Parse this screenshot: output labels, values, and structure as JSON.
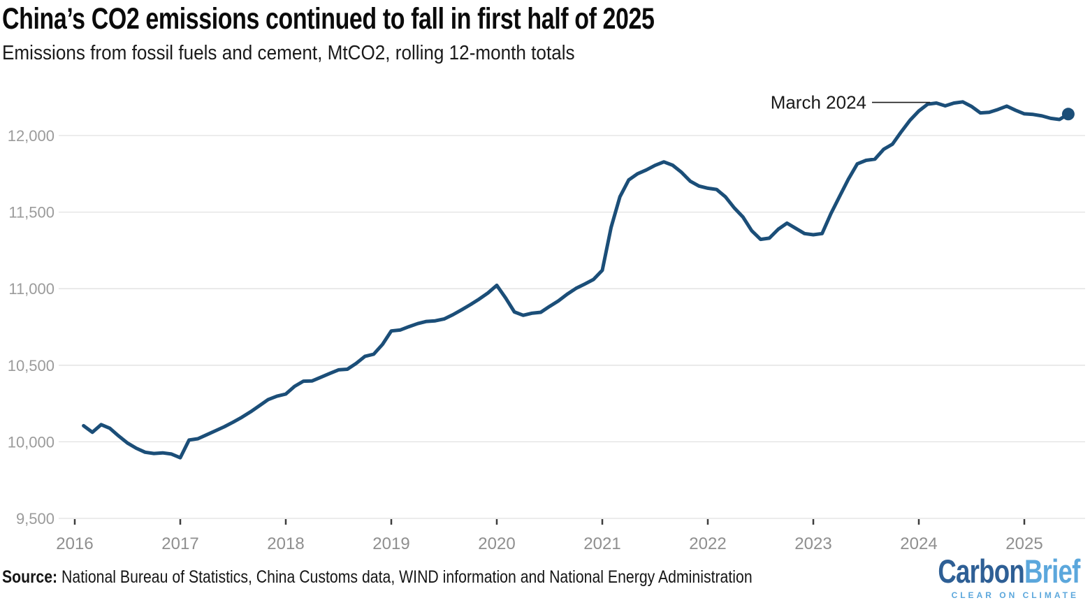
{
  "chart_data": {
    "type": "line",
    "title": "China’s CO2 emissions continued to fall in first half of 2025",
    "subtitle": "Emissions from fossil fuels and cement, MtCO2, rolling 12-month totals",
    "unit": "MtCO2",
    "series_name": "China CO2 emissions from fossil fuels and cement, rolling 12-month total",
    "start_month": "2016-02",
    "end_month": "2025-06",
    "values": [
      10105,
      10062,
      10112,
      10088,
      10038,
      9992,
      9958,
      9932,
      9924,
      9928,
      9920,
      9896,
      10012,
      10020,
      10046,
      10072,
      10098,
      10128,
      10160,
      10196,
      10236,
      10276,
      10298,
      10312,
      10362,
      10396,
      10398,
      10422,
      10446,
      10470,
      10474,
      10512,
      10558,
      10572,
      10636,
      10724,
      10730,
      10752,
      10772,
      10786,
      10790,
      10802,
      10830,
      10862,
      10896,
      10932,
      10972,
      11022,
      10940,
      10848,
      10826,
      10840,
      10846,
      10884,
      10920,
      10964,
      11002,
      11030,
      11060,
      11120,
      11400,
      11600,
      11710,
      11750,
      11775,
      11805,
      11828,
      11806,
      11760,
      11702,
      11670,
      11656,
      11648,
      11600,
      11528,
      11468,
      11378,
      11322,
      11330,
      11388,
      11428,
      11394,
      11360,
      11352,
      11360,
      11490,
      11604,
      11716,
      11815,
      11838,
      11846,
      11910,
      11944,
      12024,
      12100,
      12160,
      12205,
      12212,
      12194,
      12212,
      12220,
      12190,
      12148,
      12152,
      12170,
      12192,
      12165,
      12142,
      12138,
      12128,
      12112,
      12105,
      12140
    ],
    "y_axis": {
      "ticks": [
        9500,
        10000,
        10500,
        11000,
        11500,
        12000
      ],
      "tick_labels": [
        "9,500",
        "10,000",
        "10,500",
        "11,000",
        "11,500",
        "12,000"
      ],
      "min": 9500,
      "max": 12250
    },
    "x_axis": {
      "tick_labels": [
        "2016",
        "2017",
        "2018",
        "2019",
        "2020",
        "2021",
        "2022",
        "2023",
        "2024",
        "2025"
      ],
      "first_tick_year": 2016
    },
    "annotation": {
      "label": "March 2024",
      "month": "2024-03",
      "value": 12212
    },
    "line_color": "#1b4e78",
    "grid": true,
    "legend": false
  },
  "footer": {
    "source_label": "Source:",
    "source_text": "National Bureau of Statistics, China Customs data, WIND information and National Energy Administration",
    "logo": {
      "part1": "Carbon",
      "part2": "Brief",
      "tagline": "CLEAR ON CLIMATE",
      "color_dark": "#2e5f95",
      "color_light": "#5ba7dc"
    }
  }
}
